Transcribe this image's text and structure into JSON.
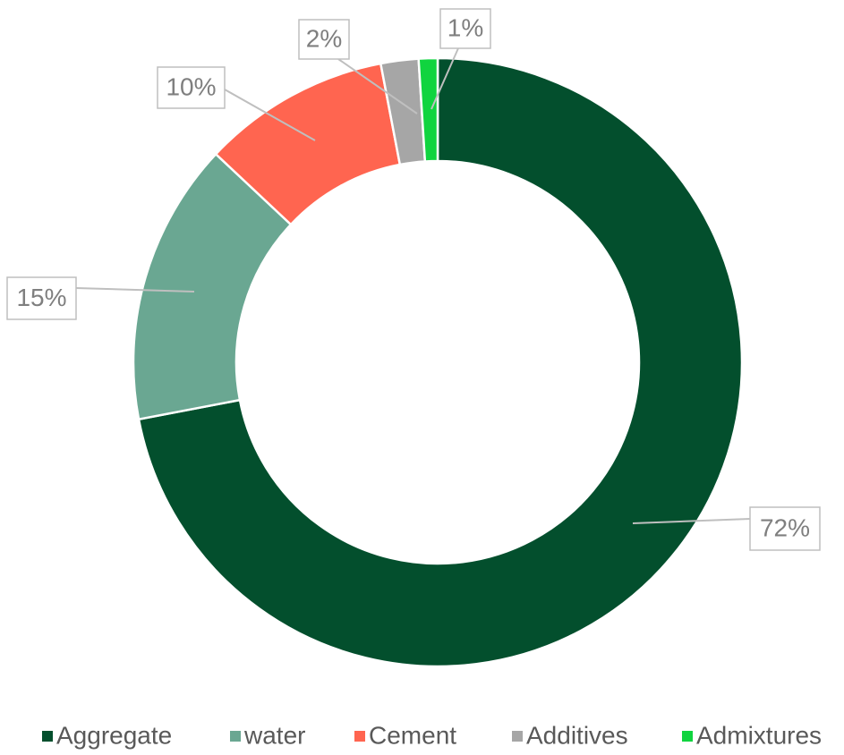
{
  "chart_data": {
    "type": "donut",
    "categories": [
      "Aggregate",
      "water",
      "Cement",
      "Additives",
      "Admixtures"
    ],
    "values": [
      72,
      15,
      10,
      2,
      1
    ],
    "value_labels": [
      "72%",
      "15%",
      "10%",
      "2%",
      "1%"
    ],
    "colors": [
      "#034f2d",
      "#6aa792",
      "#ff6550",
      "#a6a6a6",
      "#10d43f"
    ],
    "legend": "bottom"
  }
}
